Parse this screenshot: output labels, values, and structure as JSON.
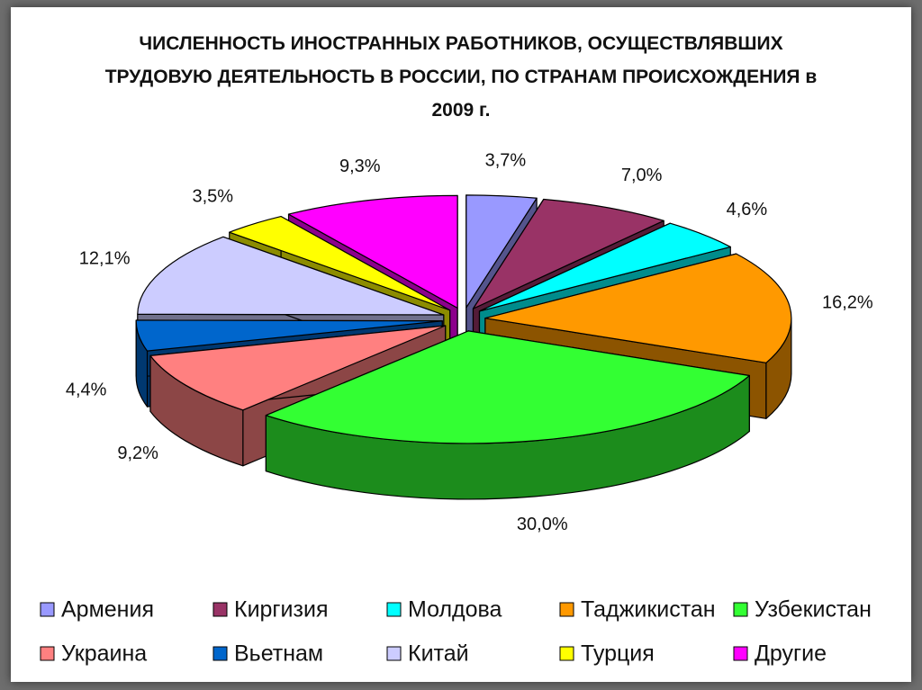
{
  "chart_data": {
    "type": "pie",
    "title": "ЧИСЛЕННОСТЬ ИНОСТРАННЫХ РАБОТНИКОВ, ОСУЩЕСТВЛЯВШИХ ТРУДОВУЮ ДЕЯТЕЛЬНОСТЬ В РОССИИ, ПО СТРАНАМ ПРОИСХОЖДЕНИЯ в 2009 г.",
    "categories": [
      "Армения",
      "Киргизия",
      "Молдова",
      "Таджикистан",
      "Узбекистан",
      "Украина",
      "Вьетнам",
      "Китай",
      "Турция",
      "Другие"
    ],
    "values": [
      3.7,
      7.0,
      4.6,
      16.2,
      30.0,
      9.2,
      4.4,
      12.1,
      3.5,
      9.3
    ],
    "value_labels": [
      "3,7%",
      "7,0%",
      "4,6%",
      "16,2%",
      "30,0%",
      "9,2%",
      "4,4%",
      "12,1%",
      "3,5%",
      "9,3%"
    ],
    "colors": [
      "#9999ff",
      "#993366",
      "#00ffff",
      "#ff9900",
      "#33ff33",
      "#ff8080",
      "#0066cc",
      "#ccccff",
      "#ffff00",
      "#ff00ff"
    ],
    "legend": "bottom"
  }
}
